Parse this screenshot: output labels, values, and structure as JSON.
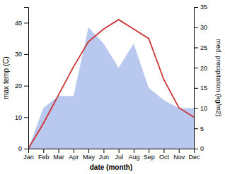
{
  "chart_data": {
    "type": "line",
    "categories": [
      "Jan",
      "Feb",
      "Mar",
      "Apr",
      "May",
      "Jun",
      "Jul",
      "Aug",
      "Sep",
      "Oct",
      "Nov",
      "Dec"
    ],
    "series": [
      {
        "type": "area",
        "axis": "y2",
        "color": "#b8c8ee",
        "values": [
          0,
          10,
          13,
          13,
          30,
          26,
          20,
          26,
          15,
          12,
          10,
          10
        ]
      },
      {
        "type": "line",
        "color": "#cc3333",
        "values": [
          0,
          8,
          17,
          26,
          34,
          38,
          41,
          38,
          35,
          22,
          13,
          10
        ]
      }
    ],
    "xlabel": "date (month)",
    "ylabel": "max temp (C)",
    "y2label": "med. precipitation (kg/m2)",
    "ylim": [
      0,
      45
    ],
    "yticks": [
      0,
      10,
      20,
      30,
      40
    ],
    "y2lim": [
      0,
      35
    ],
    "y2ticks": [
      0,
      5,
      10,
      15,
      20,
      25,
      30,
      35
    ],
    "grid": false
  }
}
